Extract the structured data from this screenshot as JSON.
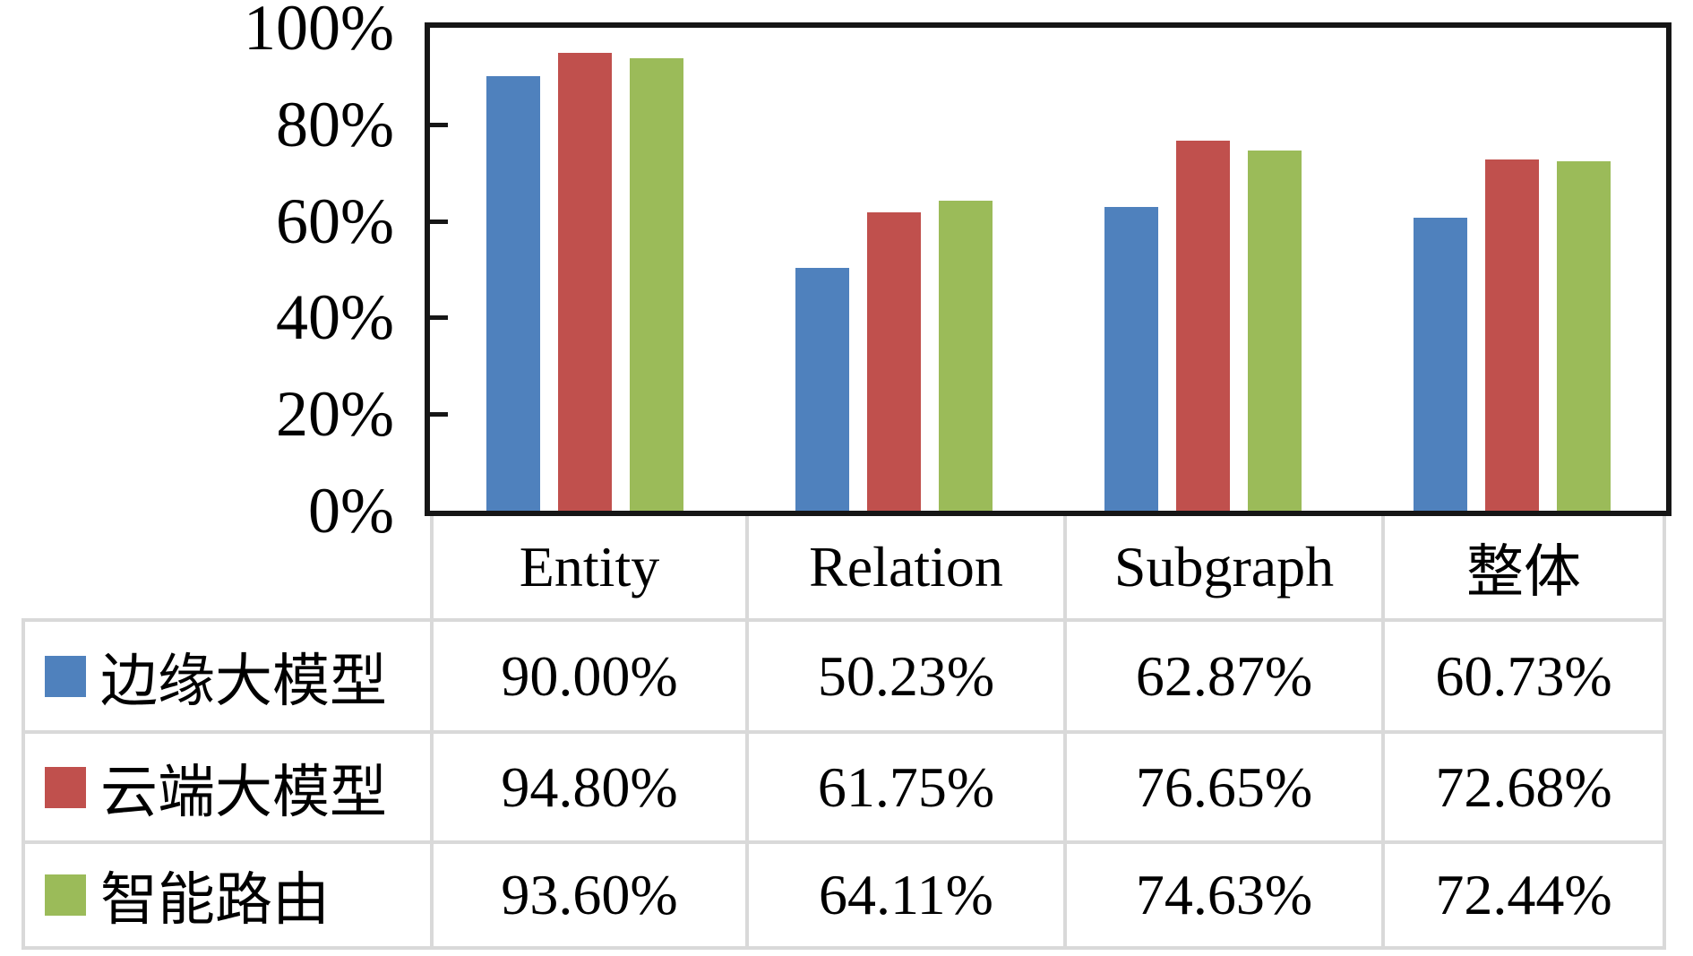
{
  "chart_data": {
    "type": "bar",
    "categories": [
      "Entity",
      "Relation",
      "Subgraph",
      "整体"
    ],
    "series": [
      {
        "name": "边缘大模型",
        "color": "#4F81BD",
        "values": [
          90.0,
          50.23,
          62.87,
          60.73
        ]
      },
      {
        "name": "云端大模型",
        "color": "#C0504D",
        "values": [
          94.8,
          61.75,
          76.65,
          72.68
        ]
      },
      {
        "name": "智能路由",
        "color": "#9BBB59",
        "values": [
          93.6,
          64.11,
          74.63,
          72.44
        ]
      }
    ],
    "ylim": [
      0,
      100
    ],
    "y_ticks": [
      0,
      20,
      40,
      60,
      80,
      100
    ],
    "y_tick_labels": [
      "0%",
      "20%",
      "40%",
      "60%",
      "80%",
      "100%"
    ],
    "xlabel": "",
    "ylabel": "",
    "grid": false,
    "legend_position": "table-left-column"
  },
  "table": {
    "headers": [
      "Entity",
      "Relation",
      "Subgraph",
      "整体"
    ],
    "rows": [
      {
        "label": "边缘大模型",
        "swatch": "#4F81BD",
        "values": [
          "90.00%",
          "50.23%",
          "62.87%",
          "60.73%"
        ]
      },
      {
        "label": "云端大模型",
        "swatch": "#C0504D",
        "values": [
          "94.80%",
          "61.75%",
          "76.65%",
          "72.68%"
        ]
      },
      {
        "label": "智能路由",
        "swatch": "#9BBB59",
        "values": [
          "93.60%",
          "64.11%",
          "74.63%",
          "72.44%"
        ]
      }
    ]
  },
  "colors": {
    "series_blue": "#4F81BD",
    "series_red": "#C0504D",
    "series_green": "#9BBB59",
    "axis_black": "#161616",
    "table_border_gray": "#D9D9D9"
  }
}
